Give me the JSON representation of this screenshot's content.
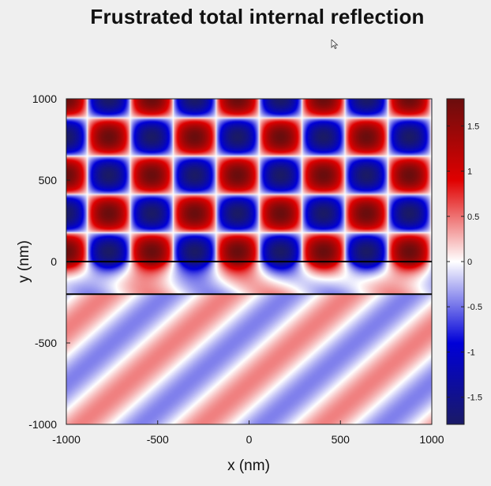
{
  "slide": {
    "title": "Frustrated total internal reflection"
  },
  "chart_data": {
    "type": "heatmap",
    "title": "",
    "xlabel": "x (nm)",
    "ylabel": "y (nm)",
    "xlim": [
      -1000,
      1000
    ],
    "ylim": [
      -1000,
      1000
    ],
    "x_ticks": [
      -1000,
      -500,
      0,
      500,
      1000
    ],
    "y_ticks": [
      -1000,
      -500,
      0,
      500,
      1000
    ],
    "interfaces_y": [
      0,
      -200
    ],
    "colorbar": {
      "range": [
        -1.8,
        1.8
      ],
      "ticks": [
        -1.5,
        -1,
        -0.5,
        0,
        0.5,
        1,
        1.5
      ],
      "tick_labels": [
        "-1.5",
        "-1",
        "-0.5",
        "0",
        "0.5",
        "1",
        "1.5"
      ],
      "colors": [
        "#1a1a66",
        "#0000d8",
        "#ffffff",
        "#e00000",
        "#6a0d0d"
      ]
    },
    "field": {
      "description_regions": [
        "standing-wave pattern above y=0",
        "evanescent gap between y=-200 and y=0",
        "diagonal transmitted wave below y=-200"
      ],
      "upper_wavelength_x": 470,
      "upper_wavelength_y": 470,
      "upper_amplitude": 1.8,
      "lower_amplitude": 0.45,
      "lower_wave_direction_deg": 45
    }
  }
}
